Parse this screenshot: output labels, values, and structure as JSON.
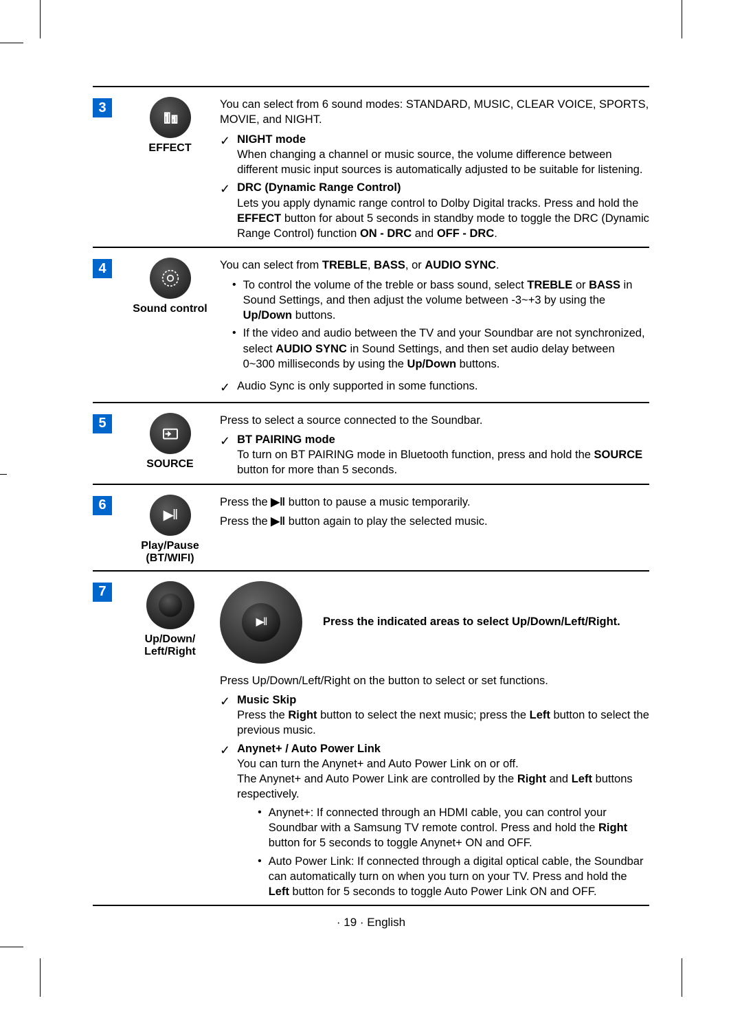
{
  "colors": {
    "num_bg": "#0066cc",
    "num_fg": "#ffffff",
    "border": "#000000",
    "body_fontsize": 16.5,
    "label_fontsize": 16,
    "num_fontsize": 20
  },
  "rows": [
    {
      "num": "3",
      "label": "EFFECT",
      "icon": "effect-icon",
      "intro": "You can select from 6 sound modes: STANDARD, MUSIC, CLEAR VOICE, SPORTS, MOVIE, and NIGHT.",
      "checks": [
        {
          "title": "NIGHT mode",
          "body": "When changing a channel or music source, the volume difference between different music input sources is automatically adjusted to be suitable for listening."
        },
        {
          "title": "DRC (Dynamic Range Control)",
          "body_parts": [
            {
              "t": "Lets you apply dynamic range control to Dolby Digital tracks. Press and hold the "
            },
            {
              "t": "EFFECT",
              "b": true
            },
            {
              "t": " button for about 5 seconds in standby mode to toggle the DRC (Dynamic Range Control) function "
            },
            {
              "t": "ON - DRC",
              "b": true
            },
            {
              "t": " and "
            },
            {
              "t": "OFF - DRC",
              "b": true
            },
            {
              "t": "."
            }
          ]
        }
      ]
    },
    {
      "num": "4",
      "label": "Sound control",
      "icon": "gear-icon",
      "intro_parts": [
        {
          "t": "You can select from "
        },
        {
          "t": "TREBLE",
          "b": true
        },
        {
          "t": ", "
        },
        {
          "t": "BASS",
          "b": true
        },
        {
          "t": ", or "
        },
        {
          "t": "AUDIO SYNC",
          "b": true
        },
        {
          "t": "."
        }
      ],
      "bullets": [
        {
          "parts": [
            {
              "t": "To control the volume of the treble or bass sound, select "
            },
            {
              "t": "TREBLE",
              "b": true
            },
            {
              "t": " or "
            },
            {
              "t": "BASS",
              "b": true
            },
            {
              "t": " in Sound Settings, and then adjust the volume between -3~+3 by using the "
            },
            {
              "t": "Up/Down",
              "b": true
            },
            {
              "t": " buttons."
            }
          ]
        },
        {
          "parts": [
            {
              "t": "If the video and audio between the TV and your Soundbar are not synchronized, select "
            },
            {
              "t": "AUDIO SYNC",
              "b": true
            },
            {
              "t": " in Sound Settings, and then set audio delay between 0~300 milliseconds by using the "
            },
            {
              "t": "Up/Down",
              "b": true
            },
            {
              "t": " buttons."
            }
          ]
        }
      ],
      "checks": [
        {
          "body": "Audio Sync is only supported in some functions."
        }
      ]
    },
    {
      "num": "5",
      "label": "SOURCE",
      "icon": "source-icon",
      "intro": "Press to select a source connected to the Soundbar.",
      "checks": [
        {
          "title": "BT PAIRING mode",
          "body_parts": [
            {
              "t": "To turn on BT PAIRING mode in Bluetooth function, press and hold the "
            },
            {
              "t": "SOURCE",
              "b": true
            },
            {
              "t": " button for more than 5 seconds."
            }
          ]
        }
      ]
    },
    {
      "num": "6",
      "label": "Play/Pause (BT/WIFI)",
      "icon": "playpause-icon",
      "lines": [
        {
          "parts": [
            {
              "t": "Press the "
            },
            {
              "t": "▶ǁ",
              "b": true
            },
            {
              "t": " button to pause a music temporarily."
            }
          ]
        },
        {
          "parts": [
            {
              "t": "Press the "
            },
            {
              "t": "▶ǁ",
              "b": true
            },
            {
              "t": " button again to play the selected music."
            }
          ]
        }
      ]
    },
    {
      "num": "7",
      "label": "Up/Down/ Left/Right",
      "icon": "dpad-icon",
      "dpad_label": "Press the indicated areas to select Up/Down/Left/Right.",
      "intro2": "Press Up/Down/Left/Right on the button to select or set functions.",
      "checks7": [
        {
          "title": "Music Skip",
          "body_parts": [
            {
              "t": "Press the "
            },
            {
              "t": "Right",
              "b": true
            },
            {
              "t": " button to select the next music; press the "
            },
            {
              "t": "Left",
              "b": true
            },
            {
              "t": " button to select the previous music."
            }
          ]
        },
        {
          "title": "Anynet+ / Auto Power Link",
          "lines": [
            {
              "parts": [
                {
                  "t": "You can turn the Anynet+ and Auto Power Link on or off."
                }
              ]
            },
            {
              "parts": [
                {
                  "t": "The Anynet+ and Auto Power Link are controlled by the "
                },
                {
                  "t": "Right",
                  "b": true
                },
                {
                  "t": " and "
                },
                {
                  "t": "Left",
                  "b": true
                },
                {
                  "t": " buttons respectively."
                }
              ]
            }
          ],
          "bullets": [
            {
              "parts": [
                {
                  "t": "Anynet+: If connected through an HDMI cable, you can control your Soundbar with a Samsung TV remote control. Press and hold the "
                },
                {
                  "t": "Right",
                  "b": true
                },
                {
                  "t": " button for 5 seconds to toggle Anynet+ ON and OFF."
                }
              ]
            },
            {
              "parts": [
                {
                  "t": "Auto Power Link: If connected through a digital optical cable, the Soundbar can automatically turn on when you turn on your TV. Press and hold the "
                },
                {
                  "t": "Left",
                  "b": true
                },
                {
                  "t": " button for 5 seconds to toggle Auto Power Link ON and OFF."
                }
              ]
            }
          ]
        }
      ]
    }
  ],
  "footer": "· 19 · English"
}
